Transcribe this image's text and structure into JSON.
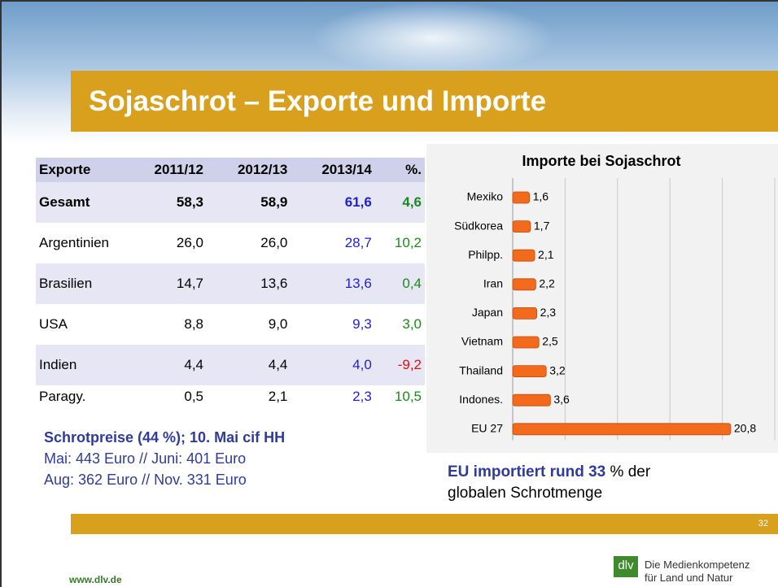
{
  "header": {
    "title": "Sojaschrot – Exporte und Importe"
  },
  "table": {
    "columns": [
      "Exporte",
      "2011/12",
      "2012/13",
      "2013/14",
      "%."
    ],
    "rows": [
      [
        "Gesamt",
        "58,3",
        "58,9",
        "61,6",
        "4,6"
      ],
      [
        "Argentinien",
        "26,0",
        "26,0",
        "28,7",
        "10,2"
      ],
      [
        "Brasilien",
        "14,7",
        "13,6",
        "13,6",
        "0,4"
      ],
      [
        "USA",
        "8,8",
        "9,0",
        "9,3",
        "3,0"
      ],
      [
        "Indien",
        "4,4",
        "4,4",
        "4,0",
        "-9,2"
      ],
      [
        "Paragy.",
        "0,5",
        "2,1",
        "2,3",
        "10,5"
      ]
    ]
  },
  "prices": {
    "heading": "Schrotpreise (44 %); 10. Mai cif HH",
    "lines": [
      "Mai: 443 Euro // Juni: 401 Euro",
      "Aug: 362 Euro // Nov. 331 Euro"
    ]
  },
  "chart_data": {
    "type": "bar",
    "orientation": "horizontal",
    "title": "Importe bei Sojaschrot",
    "categories": [
      "Mexiko",
      "Südkorea",
      "Philpp.",
      "Iran",
      "Japan",
      "Vietnam",
      "Thailand",
      "Indones.",
      "EU 27"
    ],
    "values": [
      1.6,
      1.7,
      2.1,
      2.2,
      2.3,
      2.5,
      3.2,
      3.6,
      20.8
    ],
    "value_labels": [
      "1,6",
      "1,7",
      "2,1",
      "2,2",
      "2,3",
      "2,5",
      "3,2",
      "3,6",
      "20,8"
    ],
    "color": "#f36a1c",
    "xlim": [
      0,
      25
    ],
    "xticks": [
      0,
      5,
      10,
      15,
      20,
      25
    ],
    "grid": true
  },
  "chart_note": {
    "emphasis": "EU importiert rund 33",
    "rest": "% der",
    "line2": "globalen Schrotmenge"
  },
  "footer": {
    "page": "32",
    "url": "www.dlv.de",
    "logo": "dlv",
    "tagline": [
      "Die Medienkompetenz",
      "für Land und Natur"
    ]
  }
}
